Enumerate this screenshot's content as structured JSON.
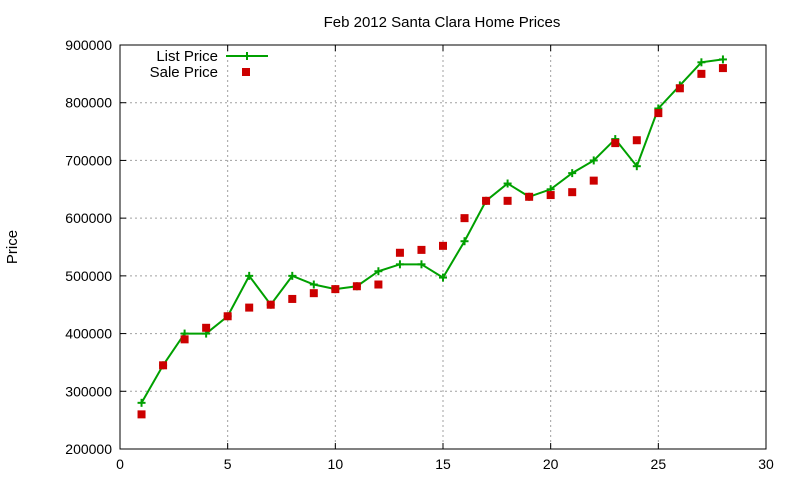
{
  "chart_data": {
    "type": "line",
    "title": "Feb 2012 Santa Clara Home Prices",
    "xlabel": "",
    "ylabel": "Price",
    "xlim": [
      0,
      30
    ],
    "ylim": [
      200000,
      900000
    ],
    "xticks": [
      "0",
      "5",
      "10",
      "15",
      "20",
      "25",
      "30"
    ],
    "yticks": [
      "200000",
      "300000",
      "400000",
      "500000",
      "600000",
      "700000",
      "800000",
      "900000"
    ],
    "grid": true,
    "legend_position": "top-left",
    "series": [
      {
        "name": "List Price",
        "style": "line+cross",
        "color": "#00a000",
        "x": [
          1,
          2,
          3,
          4,
          5,
          6,
          7,
          8,
          9,
          10,
          11,
          12,
          13,
          14,
          15,
          16,
          17,
          18,
          19,
          20,
          21,
          22,
          23,
          24,
          25,
          26,
          27,
          28
        ],
        "y": [
          280000,
          345000,
          400000,
          400000,
          430000,
          500000,
          450000,
          500000,
          485000,
          477000,
          482000,
          508000,
          520000,
          520000,
          497000,
          560000,
          630000,
          660000,
          637000,
          650000,
          678000,
          700000,
          737000,
          690000,
          790000,
          830000,
          870000,
          875000
        ]
      },
      {
        "name": "Sale Price",
        "style": "square-points",
        "color": "#cc0000",
        "x": [
          1,
          2,
          3,
          4,
          5,
          6,
          7,
          8,
          9,
          10,
          11,
          12,
          13,
          14,
          15,
          16,
          17,
          18,
          19,
          20,
          21,
          22,
          23,
          24,
          25,
          26,
          27,
          28
        ],
        "y": [
          260000,
          345000,
          390000,
          410000,
          430000,
          445000,
          450000,
          460000,
          470000,
          477000,
          482000,
          485000,
          540000,
          545000,
          552000,
          600000,
          630000,
          630000,
          637000,
          640000,
          645000,
          665000,
          730000,
          735000,
          782000,
          825000,
          850000,
          860000
        ]
      }
    ]
  }
}
